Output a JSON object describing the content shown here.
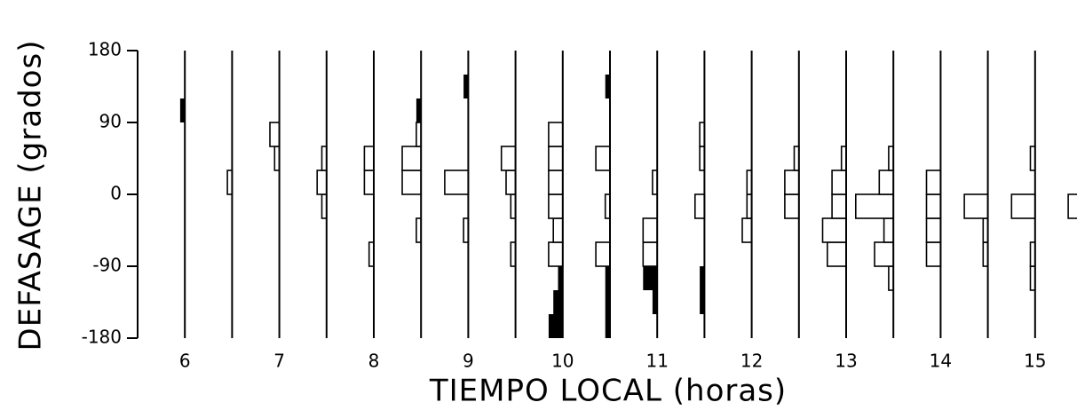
{
  "chart_data": {
    "type": "histogram-strip",
    "y_label": "DEFASAGE (grados)",
    "x_label": "TIEMPO LOCAL (horas)",
    "ylim": [
      -180,
      180
    ],
    "yticks": [
      180,
      90,
      0,
      -90,
      -180
    ],
    "bins": [
      -180,
      -150,
      -120,
      -90,
      -60,
      -30,
      0,
      30,
      60,
      90,
      120,
      150,
      180
    ],
    "xlim": [
      5.5,
      15.5
    ],
    "xticks": [
      6,
      7,
      8,
      9,
      10,
      11,
      12,
      13,
      14,
      15
    ],
    "color": "#000000",
    "columns": [
      {
        "x": 6,
        "values": [
          0,
          0,
          0,
          0,
          0,
          0,
          0,
          0,
          0,
          0,
          0,
          0
        ],
        "filled": [
          0,
          0,
          0,
          0,
          0,
          0,
          0,
          0,
          0,
          1,
          0,
          0
        ]
      },
      {
        "x": 6.5,
        "values": [
          0,
          0,
          0,
          0,
          0,
          0,
          1,
          0,
          0,
          0,
          0,
          0
        ],
        "filled": [
          0,
          0,
          0,
          0,
          0,
          0,
          0,
          0,
          0,
          0,
          0,
          0
        ]
      },
      {
        "x": 7,
        "values": [
          0,
          0,
          0,
          0,
          0,
          0,
          0,
          1,
          2,
          0,
          0,
          0
        ],
        "filled": [
          0,
          0,
          0,
          0,
          0,
          0,
          0,
          0,
          0,
          0,
          0,
          0
        ]
      },
      {
        "x": 7.5,
        "values": [
          0,
          0,
          0,
          0,
          0,
          1,
          2,
          1,
          0,
          0,
          0,
          0
        ],
        "filled": [
          0,
          0,
          0,
          0,
          0,
          0,
          0,
          0,
          0,
          0,
          0,
          0
        ]
      },
      {
        "x": 8,
        "values": [
          0,
          0,
          0,
          1,
          0,
          0,
          2,
          2,
          0,
          0,
          0,
          0
        ],
        "filled": [
          0,
          0,
          0,
          0,
          0,
          0,
          0,
          0,
          0,
          0,
          0,
          0
        ]
      },
      {
        "x": 8.5,
        "values": [
          0,
          0,
          0,
          0,
          1,
          0,
          4,
          4,
          1,
          0,
          0,
          0
        ],
        "filled": [
          0,
          0,
          0,
          0,
          0,
          0,
          0,
          0,
          0,
          1,
          0,
          0
        ]
      },
      {
        "x": 9,
        "values": [
          0,
          0,
          0,
          0,
          1,
          0,
          5,
          0,
          0,
          0,
          0,
          0
        ],
        "filled": [
          0,
          0,
          0,
          0,
          0,
          0,
          0,
          0,
          0,
          0,
          1,
          0
        ]
      },
      {
        "x": 9.5,
        "values": [
          0,
          0,
          0,
          1,
          0,
          1,
          2,
          3,
          0,
          0,
          0,
          0
        ],
        "filled": [
          0,
          0,
          0,
          0,
          0,
          0,
          0,
          0,
          0,
          0,
          0,
          0
        ]
      },
      {
        "x": 10,
        "values": [
          0,
          0,
          0,
          3,
          2,
          3,
          3,
          3,
          3,
          0,
          0,
          0
        ],
        "filled": [
          3,
          2,
          1,
          0,
          0,
          0,
          0,
          0,
          0,
          0,
          0,
          0
        ]
      },
      {
        "x": 10.5,
        "values": [
          0,
          0,
          0,
          3,
          0,
          1,
          0,
          3,
          0,
          0,
          0,
          0
        ],
        "filled": [
          1,
          1,
          1,
          0,
          0,
          0,
          0,
          0,
          0,
          0,
          1,
          0
        ]
      },
      {
        "x": 11,
        "values": [
          0,
          0,
          0,
          3,
          3,
          0,
          1,
          0,
          0,
          0,
          0,
          0
        ],
        "filled": [
          0,
          1,
          3,
          0,
          0,
          0,
          0,
          0,
          0,
          0,
          0,
          0
        ]
      },
      {
        "x": 11.5,
        "values": [
          0,
          0,
          0,
          0,
          0,
          2,
          0,
          1,
          1,
          0,
          0,
          0
        ],
        "filled": [
          0,
          1,
          1,
          0,
          0,
          0,
          0,
          0,
          0,
          0,
          0,
          0
        ]
      },
      {
        "x": 12,
        "values": [
          0,
          0,
          0,
          0,
          2,
          1,
          1,
          0,
          0,
          0,
          0,
          0
        ],
        "filled": [
          0,
          0,
          0,
          0,
          0,
          0,
          0,
          0,
          0,
          0,
          0,
          0
        ]
      },
      {
        "x": 12.5,
        "values": [
          0,
          0,
          0,
          0,
          0,
          3,
          3,
          1,
          0,
          0,
          0,
          0
        ],
        "filled": [
          0,
          0,
          0,
          0,
          0,
          0,
          0,
          0,
          0,
          0,
          0,
          0
        ]
      },
      {
        "x": 13,
        "values": [
          0,
          0,
          0,
          4,
          5,
          3,
          3,
          1,
          0,
          0,
          0,
          0
        ],
        "filled": [
          0,
          0,
          0,
          0,
          0,
          0,
          0,
          0,
          0,
          0,
          0,
          0
        ]
      },
      {
        "x": 13.5,
        "values": [
          0,
          0,
          1,
          4,
          2,
          8,
          3,
          1,
          0,
          0,
          0,
          0
        ],
        "filled": [
          0,
          0,
          0,
          0,
          0,
          0,
          0,
          0,
          0,
          0,
          0,
          0
        ]
      },
      {
        "x": 14,
        "values": [
          0,
          0,
          0,
          3,
          3,
          3,
          3,
          0,
          0,
          0,
          0,
          0
        ],
        "filled": [
          0,
          0,
          0,
          0,
          0,
          0,
          0,
          0,
          0,
          0,
          0,
          0
        ]
      },
      {
        "x": 14.5,
        "values": [
          0,
          0,
          0,
          1,
          1,
          5,
          0,
          0,
          0,
          0,
          0,
          0
        ],
        "filled": [
          0,
          0,
          0,
          0,
          0,
          0,
          0,
          0,
          0,
          0,
          0,
          0
        ]
      },
      {
        "x": 15,
        "values": [
          0,
          0,
          1,
          1,
          0,
          5,
          0,
          1,
          0,
          0,
          0,
          0
        ],
        "filled": [
          0,
          0,
          0,
          0,
          0,
          0,
          0,
          0,
          0,
          0,
          0,
          0
        ]
      },
      {
        "x": 15.5,
        "values": [
          0,
          0,
          0,
          0,
          0,
          3,
          0,
          0,
          0,
          0,
          0,
          0
        ],
        "filled": [
          0,
          0,
          0,
          0,
          0,
          0,
          0,
          0,
          0,
          0,
          0,
          0
        ]
      }
    ]
  }
}
